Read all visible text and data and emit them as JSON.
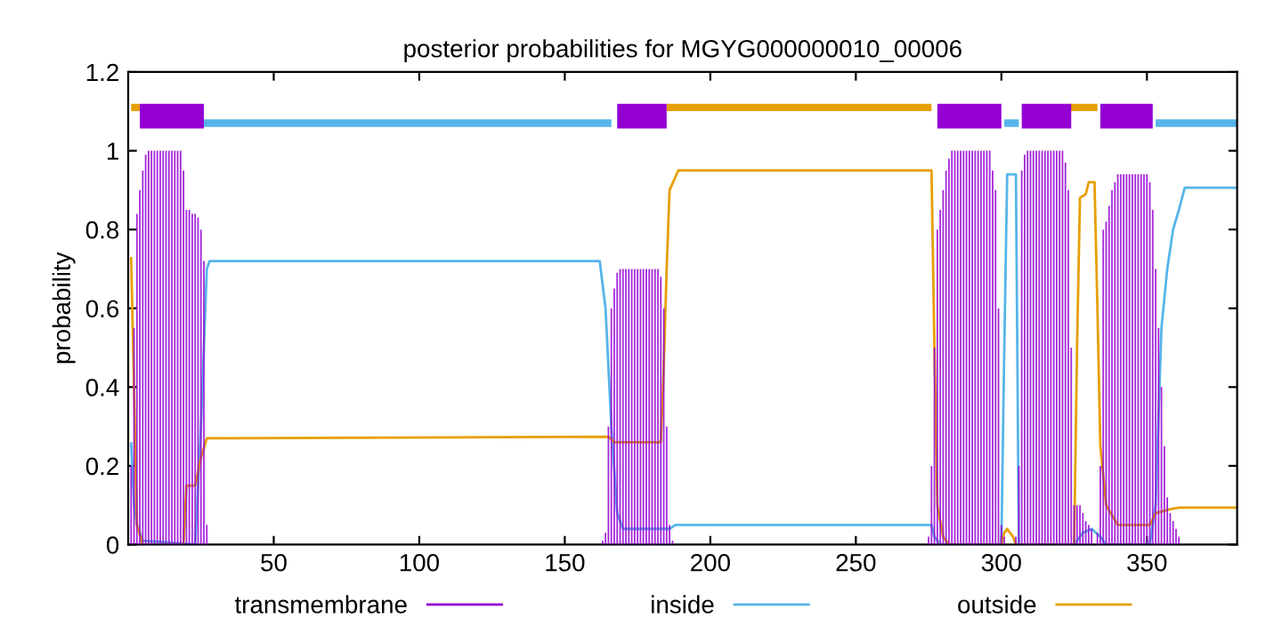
{
  "chart_data": {
    "type": "line",
    "title": "posterior probabilities for MGYG000000010_00006",
    "ylabel": "probability",
    "xlim": [
      0,
      381
    ],
    "ylim": [
      0,
      1.2
    ],
    "xticks": [
      50,
      100,
      150,
      200,
      250,
      300,
      350
    ],
    "yticks": [
      0,
      0.2,
      0.4,
      0.6,
      0.8,
      1,
      1.2
    ],
    "grid": false,
    "legend": "bottom",
    "series": [
      {
        "name": "transmembrane",
        "type": "bar",
        "color": "#9400d3",
        "x": [
          1,
          2,
          3,
          4,
          5,
          6,
          7,
          8,
          9,
          10,
          11,
          12,
          13,
          14,
          15,
          16,
          17,
          18,
          19,
          20,
          21,
          22,
          23,
          24,
          25,
          26,
          27,
          28,
          163,
          164,
          165,
          166,
          167,
          168,
          169,
          170,
          171,
          172,
          173,
          174,
          175,
          176,
          177,
          178,
          179,
          180,
          181,
          182,
          183,
          184,
          185,
          186,
          187,
          275,
          276,
          277,
          278,
          279,
          280,
          281,
          282,
          283,
          284,
          285,
          286,
          287,
          288,
          289,
          290,
          291,
          292,
          293,
          294,
          295,
          296,
          297,
          298,
          299,
          300,
          301,
          305,
          306,
          307,
          308,
          309,
          310,
          311,
          312,
          313,
          314,
          315,
          316,
          317,
          318,
          319,
          320,
          321,
          322,
          323,
          324,
          325,
          326,
          327,
          328,
          329,
          330,
          331,
          333,
          334,
          335,
          336,
          337,
          338,
          339,
          340,
          341,
          342,
          343,
          344,
          345,
          346,
          347,
          348,
          349,
          350,
          351,
          352,
          353,
          354,
          355,
          356,
          357,
          358,
          359,
          360,
          361
        ],
        "values": [
          0.2,
          0.55,
          0.84,
          0.9,
          0.95,
          0.99,
          1,
          1,
          1,
          1,
          1,
          1,
          1,
          1,
          1,
          1,
          1,
          1,
          0.95,
          0.85,
          0.85,
          0.84,
          0.84,
          0.83,
          0.8,
          0.72,
          0.05,
          null,
          0.01,
          0.03,
          0.3,
          0.6,
          0.65,
          0.69,
          0.7,
          0.7,
          0.7,
          0.7,
          0.7,
          0.7,
          0.7,
          0.7,
          0.7,
          0.7,
          0.7,
          0.7,
          0.7,
          0.7,
          0.68,
          0.6,
          0.3,
          0.05,
          0.01,
          0.02,
          0.2,
          0.5,
          0.8,
          0.85,
          0.9,
          0.95,
          0.98,
          1,
          1,
          1,
          1,
          1,
          1,
          1,
          1,
          1,
          1,
          1,
          1,
          1,
          1,
          0.95,
          0.9,
          0.6,
          0.05,
          0.02,
          0.02,
          0.2,
          0.95,
          0.99,
          1,
          1,
          1,
          1,
          1,
          1,
          1,
          1,
          1,
          1,
          1,
          1,
          1,
          0.97,
          0.9,
          0.5,
          0.1,
          0.1,
          0.1,
          0.08,
          0.06,
          0.05,
          0.04,
          0.03,
          0.2,
          0.8,
          0.82,
          0.86,
          0.9,
          0.92,
          0.94,
          0.94,
          0.94,
          0.94,
          0.94,
          0.94,
          0.94,
          0.94,
          0.94,
          0.94,
          0.94,
          0.92,
          0.85,
          0.7,
          0.55,
          0.4,
          0.25,
          0.12,
          0.08,
          0.06,
          0.04,
          0.02
        ]
      },
      {
        "name": "inside",
        "color": "#56b4e9",
        "x": [
          1,
          2,
          3,
          5,
          23,
          25,
          27,
          28,
          162,
          164,
          166,
          168,
          170,
          186,
          188,
          276,
          277,
          279,
          300,
          301,
          302,
          305,
          306,
          325,
          328,
          331,
          334,
          336,
          351,
          353,
          355,
          357,
          359,
          361,
          363,
          381
        ],
        "values": [
          0.26,
          0.1,
          0.05,
          0.01,
          0,
          0.3,
          0.7,
          0.72,
          0.72,
          0.6,
          0.3,
          0.08,
          0.04,
          0.04,
          0.05,
          0.05,
          0.02,
          0,
          0,
          0.5,
          0.94,
          0.94,
          0,
          0,
          0.03,
          0.04,
          0.02,
          0,
          0,
          0.1,
          0.55,
          0.7,
          0.8,
          0.85,
          0.906,
          0.906
        ]
      },
      {
        "name": "outside",
        "color": "#e69f00",
        "x": [
          1,
          2,
          3,
          5,
          19,
          20,
          23,
          25,
          27,
          165,
          167,
          183,
          184,
          185,
          186,
          189,
          276,
          277,
          278,
          280,
          282,
          300,
          301,
          302,
          304,
          305,
          325,
          326,
          327,
          329,
          330,
          332,
          333,
          334,
          336,
          340,
          351,
          353,
          358,
          361,
          381
        ],
        "values": [
          0.73,
          0.4,
          0.05,
          0,
          0,
          0.15,
          0.15,
          0.22,
          0.27,
          0.274,
          0.26,
          0.26,
          0.45,
          0.7,
          0.9,
          0.95,
          0.95,
          0.5,
          0.1,
          0.02,
          0,
          0,
          0.03,
          0.04,
          0.02,
          0,
          0,
          0.5,
          0.88,
          0.89,
          0.92,
          0.92,
          0.6,
          0.25,
          0.1,
          0.05,
          0.05,
          0.08,
          0.09,
          0.094,
          0.094
        ]
      },
      {
        "color": "#e69f00",
        "x": [
          1,
          4,
          5,
          185,
          276,
          277,
          323,
          333
        ],
        "values": [
          1.11,
          1.11,
          null,
          1.11,
          1.11,
          null,
          1.11,
          1.11
        ]
      },
      {
        "color": "#56b4e9",
        "x": [
          26,
          166,
          167,
          301,
          306,
          307,
          353,
          381
        ],
        "values": [
          1.07,
          1.07,
          null,
          1.07,
          1.07,
          null,
          1.07,
          1.07
        ]
      },
      {
        "color": "#9400d3",
        "x": [
          4,
          26,
          27,
          168,
          185,
          186,
          278,
          300,
          301,
          307,
          324,
          325,
          334,
          352
        ],
        "values": [
          1.088,
          1.088,
          null,
          1.088,
          1.088,
          null,
          1.088,
          1.088,
          null,
          1.088,
          1.088,
          null,
          1.088,
          1.088
        ]
      }
    ]
  }
}
